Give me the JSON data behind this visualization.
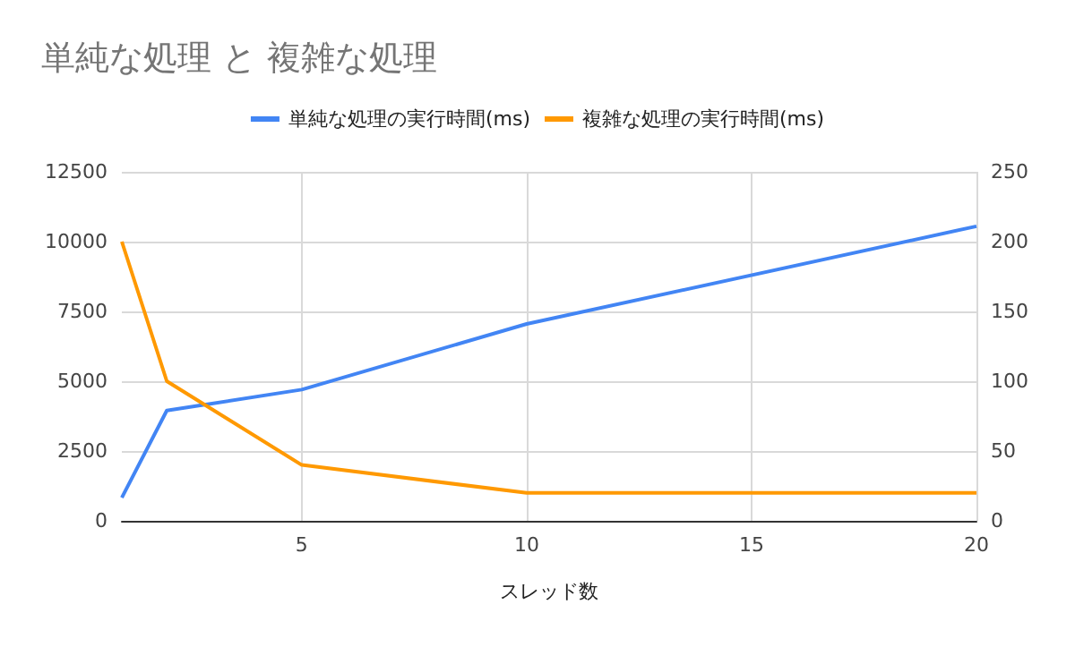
{
  "chart_data": {
    "type": "line",
    "title": "単純な処理 と 複雑な処理",
    "xlabel": "スレッド数",
    "x": [
      1,
      2,
      5,
      10,
      20
    ],
    "series": [
      {
        "name": "単純な処理の実行時間(ms)",
        "color": "#4285f4",
        "values": [
          830,
          3950,
          4700,
          7050,
          10550
        ]
      },
      {
        "name": "複雑な処理の実行時間(ms)",
        "color": "#ff9900",
        "values": [
          200,
          100,
          40,
          20,
          20
        ],
        "axis": "y2"
      }
    ],
    "xlim": [
      1,
      20
    ],
    "xticks": [
      5,
      10,
      15,
      20
    ],
    "ylim": [
      0,
      12500
    ],
    "yticks": [
      0,
      2500,
      5000,
      7500,
      10000,
      12500
    ],
    "y2lim": [
      0,
      250
    ],
    "y2ticks": [
      0,
      50,
      100,
      150,
      200,
      250
    ],
    "grid": true,
    "legend": "top",
    "marker": "none",
    "line_style": "solid"
  }
}
